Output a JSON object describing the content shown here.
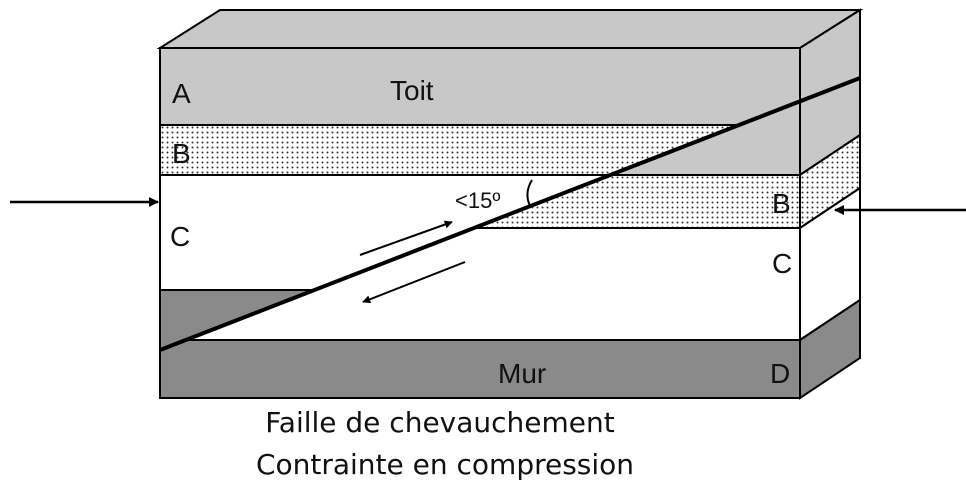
{
  "labels": {
    "hanging_wall": [
      "A",
      "Toit",
      "B",
      "C"
    ],
    "angle": "<15º",
    "footwall": [
      "B",
      "C",
      "Mur",
      "D"
    ]
  },
  "caption": [
    "Faille de chevauchement",
    "Contrainte en compression"
  ]
}
